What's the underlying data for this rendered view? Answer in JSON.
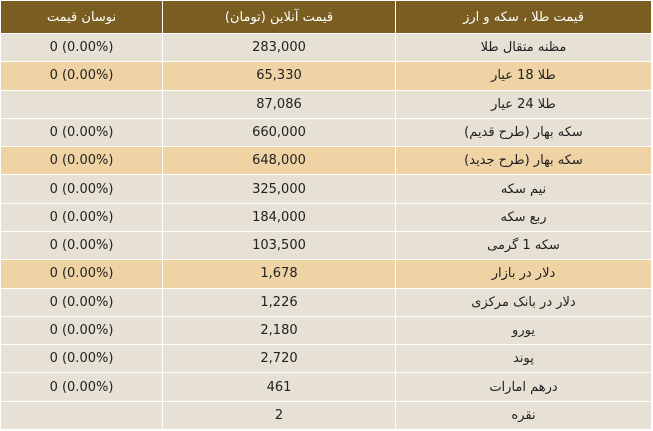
{
  "table": {
    "headers": {
      "change": "نوسان قیمت",
      "price": "قیمت آنلاین (تومان)",
      "name": "قیمت طلا ، سکه و ارز"
    },
    "rows": [
      {
        "name": "مظنه متقال طلا",
        "price": "283,000",
        "change": "0 (0.00%)",
        "highlight": false
      },
      {
        "name": "طلا 18 عیار",
        "price": "65,330",
        "change": "0 (0.00%)",
        "highlight": true
      },
      {
        "name": "طلا 24 عیار",
        "price": "87,086",
        "change": "",
        "highlight": false
      },
      {
        "name": "سکه بهار (طرح قدیم)",
        "price": "660,000",
        "change": "0 (0.00%)",
        "highlight": false
      },
      {
        "name": "سکه بهار (طرح جدید)",
        "price": "648,000",
        "change": "0 (0.00%)",
        "highlight": true
      },
      {
        "name": "نیم سکه",
        "price": "325,000",
        "change": "0 (0.00%)",
        "highlight": false
      },
      {
        "name": "ربع سکه",
        "price": "184,000",
        "change": "0 (0.00%)",
        "highlight": false
      },
      {
        "name": "سکه 1 گرمی",
        "price": "103,500",
        "change": "0 (0.00%)",
        "highlight": false
      },
      {
        "name": "دلار در بازار",
        "price": "1,678",
        "change": "0 (0.00%)",
        "highlight": true
      },
      {
        "name": "دلار در بانک مرکزی",
        "price": "1,226",
        "change": "0 (0.00%)",
        "highlight": false
      },
      {
        "name": "یورو",
        "price": "2,180",
        "change": "0 (0.00%)",
        "highlight": false
      },
      {
        "name": "پوند",
        "price": "2,720",
        "change": "0 (0.00%)",
        "highlight": false
      },
      {
        "name": "درهم امارات",
        "price": "461",
        "change": "0 (0.00%)",
        "highlight": false
      },
      {
        "name": "نقره",
        "price": "2",
        "change": "",
        "highlight": false
      }
    ]
  },
  "colors": {
    "header_bg": "#7a5d21",
    "row_bg": "#e6e0d5",
    "row_highlight_bg": "#efd3a4"
  }
}
